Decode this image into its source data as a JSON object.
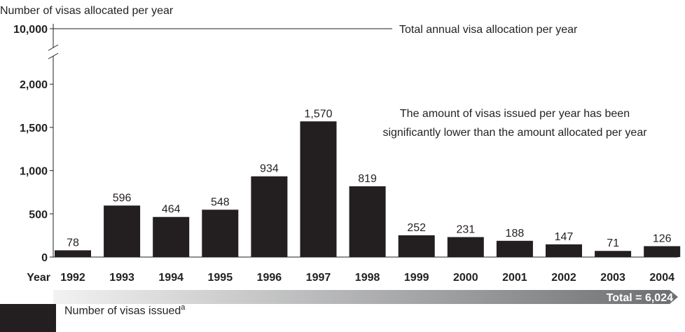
{
  "chart_data": {
    "type": "bar",
    "ylabel": "Number of visas allocated per year",
    "xlabel": "Year",
    "categories": [
      "1992",
      "1993",
      "1994",
      "1995",
      "1996",
      "1997",
      "1998",
      "1999",
      "2000",
      "2001",
      "2002",
      "2003",
      "2004"
    ],
    "series": [
      {
        "name": "Number of visas issued",
        "values": [
          78,
          596,
          464,
          548,
          934,
          1570,
          819,
          252,
          231,
          188,
          147,
          71,
          126
        ]
      }
    ],
    "data_labels": [
      "78",
      "596",
      "464",
      "548",
      "934",
      "1,570",
      "819",
      "252",
      "231",
      "188",
      "147",
      "71",
      "126"
    ],
    "y_ticks": [
      {
        "value": 0,
        "label": "0"
      },
      {
        "value": 500,
        "label": "500"
      },
      {
        "value": 1000,
        "label": "1,000"
      },
      {
        "value": 1500,
        "label": "1,500"
      },
      {
        "value": 2000,
        "label": "2,000"
      },
      {
        "value": 10000,
        "label": "10,000"
      }
    ],
    "ylim": [
      0,
      10000
    ],
    "axis_break": true,
    "allocation_line": {
      "value": 10000,
      "label": "Total annual visa allocation per year"
    },
    "annotation": [
      "The amount of visas issued per year has been",
      "significantly lower than the amount allocated per year"
    ],
    "total_label": "Total = 6,024",
    "legend": {
      "label": "Number of visas issued",
      "footnote_mark": "a",
      "position": "bottom-left"
    },
    "grid": false,
    "colors": {
      "bar": "#231f20",
      "text": "#231f20",
      "arrow_start": "#f2f2f2",
      "arrow_end": "#6d6e71"
    }
  }
}
